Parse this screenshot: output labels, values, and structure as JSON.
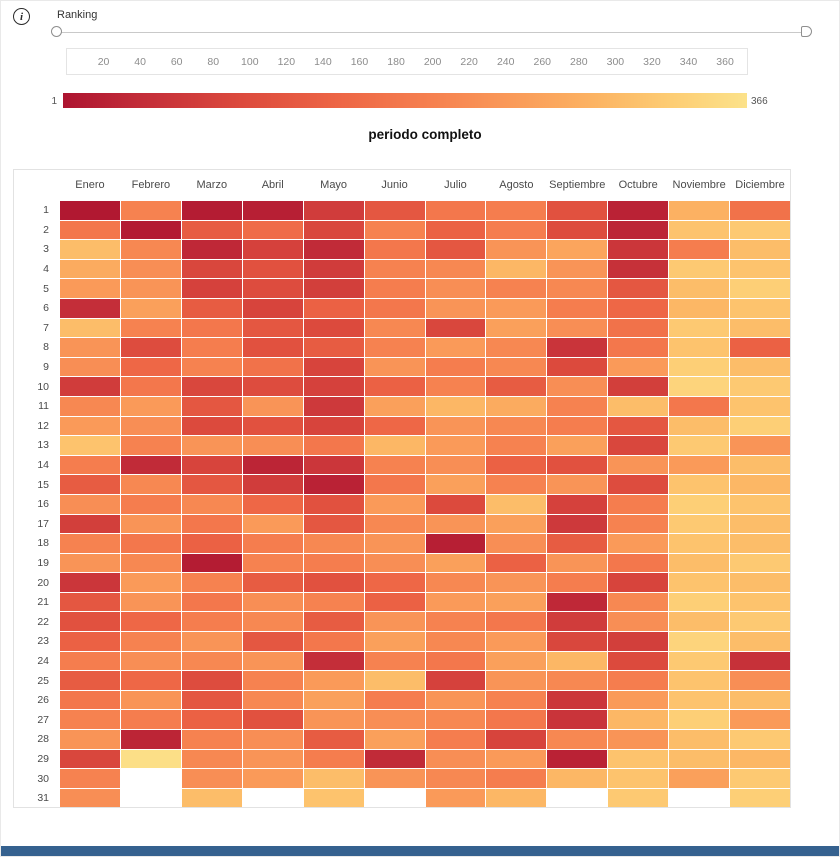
{
  "header": {
    "ranking_label": "Ranking"
  },
  "slider": {
    "ticks": [
      "20",
      "40",
      "60",
      "80",
      "100",
      "120",
      "140",
      "160",
      "180",
      "200",
      "220",
      "240",
      "260",
      "280",
      "300",
      "320",
      "340",
      "360"
    ],
    "scale_max": 372
  },
  "legend": {
    "min_label": "1",
    "max_label": "366"
  },
  "colors": {
    "footer": "#35618f"
  },
  "chart_data": {
    "type": "heatmap",
    "title": "periodo completo",
    "xlabel": "",
    "ylabel": "",
    "value_range": [
      1,
      366
    ],
    "legend_position": "top",
    "grid": false,
    "columns": [
      "Enero",
      "Febrero",
      "Marzo",
      "Abril",
      "Mayo",
      "Junio",
      "Julio",
      "Agosto",
      "Septiembre",
      "Octubre",
      "Noviembre",
      "Diciembre"
    ],
    "rows": [
      "1",
      "2",
      "3",
      "4",
      "5",
      "6",
      "7",
      "8",
      "9",
      "10",
      "11",
      "12",
      "13",
      "14",
      "15",
      "16",
      "17",
      "18",
      "19",
      "20",
      "21",
      "22",
      "23",
      "24",
      "25",
      "26",
      "27",
      "28",
      "29",
      "30",
      "31"
    ],
    "colormap": {
      "stops": [
        [
          0.0,
          "#ad1430"
        ],
        [
          0.12,
          "#c42e39"
        ],
        [
          0.26,
          "#dc4a3d"
        ],
        [
          0.4,
          "#ed6545"
        ],
        [
          0.54,
          "#f68150"
        ],
        [
          0.66,
          "#fa9b59"
        ],
        [
          0.78,
          "#fcb463"
        ],
        [
          0.89,
          "#fdcd74"
        ],
        [
          1.0,
          "#fce28a"
        ]
      ]
    },
    "values": [
      [
        8,
        200,
        15,
        20,
        70,
        120,
        180,
        190,
        110,
        25,
        280,
        170
      ],
      [
        180,
        12,
        130,
        160,
        90,
        200,
        140,
        190,
        100,
        30,
        310,
        320
      ],
      [
        300,
        210,
        35,
        80,
        40,
        180,
        120,
        230,
        260,
        60,
        190,
        300
      ],
      [
        270,
        220,
        90,
        110,
        70,
        200,
        210,
        290,
        230,
        50,
        320,
        310
      ],
      [
        240,
        230,
        80,
        100,
        75,
        190,
        220,
        200,
        210,
        120,
        300,
        330
      ],
      [
        45,
        250,
        130,
        85,
        140,
        180,
        230,
        240,
        190,
        150,
        290,
        310
      ],
      [
        300,
        200,
        180,
        120,
        95,
        210,
        90,
        250,
        220,
        170,
        320,
        300
      ],
      [
        230,
        100,
        190,
        110,
        130,
        200,
        240,
        210,
        55,
        180,
        310,
        140
      ],
      [
        220,
        150,
        200,
        170,
        85,
        230,
        190,
        210,
        95,
        240,
        330,
        300
      ],
      [
        70,
        180,
        90,
        100,
        80,
        140,
        200,
        130,
        220,
        75,
        340,
        320
      ],
      [
        210,
        240,
        120,
        230,
        65,
        250,
        290,
        270,
        200,
        300,
        180,
        310
      ],
      [
        240,
        220,
        95,
        110,
        85,
        150,
        230,
        210,
        190,
        120,
        300,
        330
      ],
      [
        310,
        200,
        230,
        220,
        180,
        290,
        240,
        200,
        250,
        90,
        320,
        230
      ],
      [
        190,
        40,
        85,
        30,
        60,
        200,
        220,
        140,
        110,
        230,
        240,
        300
      ],
      [
        130,
        210,
        120,
        70,
        25,
        180,
        250,
        200,
        230,
        100,
        310,
        290
      ],
      [
        220,
        190,
        210,
        150,
        110,
        240,
        95,
        300,
        80,
        190,
        330,
        310
      ],
      [
        75,
        230,
        180,
        240,
        120,
        210,
        230,
        250,
        65,
        200,
        320,
        300
      ],
      [
        200,
        180,
        140,
        190,
        210,
        230,
        20,
        220,
        130,
        240,
        310,
        300
      ],
      [
        230,
        210,
        15,
        200,
        190,
        220,
        250,
        140,
        230,
        180,
        300,
        320
      ],
      [
        60,
        240,
        200,
        130,
        110,
        150,
        210,
        230,
        190,
        85,
        310,
        300
      ],
      [
        120,
        230,
        180,
        220,
        200,
        140,
        240,
        250,
        35,
        210,
        330,
        310
      ],
      [
        110,
        150,
        190,
        210,
        130,
        230,
        200,
        180,
        70,
        220,
        300,
        320
      ],
      [
        140,
        200,
        230,
        120,
        180,
        250,
        210,
        240,
        90,
        75,
        340,
        300
      ],
      [
        190,
        220,
        210,
        230,
        45,
        200,
        180,
        250,
        290,
        95,
        320,
        50
      ],
      [
        130,
        150,
        100,
        200,
        240,
        300,
        80,
        230,
        210,
        190,
        310,
        220
      ],
      [
        180,
        230,
        120,
        210,
        250,
        190,
        230,
        200,
        60,
        240,
        310,
        300
      ],
      [
        200,
        190,
        140,
        110,
        230,
        220,
        210,
        180,
        55,
        290,
        330,
        240
      ],
      [
        230,
        30,
        200,
        220,
        130,
        250,
        190,
        85,
        210,
        230,
        300,
        320
      ],
      [
        90,
        360,
        210,
        230,
        190,
        40,
        220,
        240,
        25,
        310,
        300,
        290
      ],
      [
        200,
        null,
        220,
        240,
        300,
        230,
        210,
        190,
        290,
        310,
        250,
        320
      ],
      [
        220,
        null,
        300,
        null,
        310,
        null,
        240,
        290,
        null,
        320,
        null,
        330
      ]
    ]
  }
}
